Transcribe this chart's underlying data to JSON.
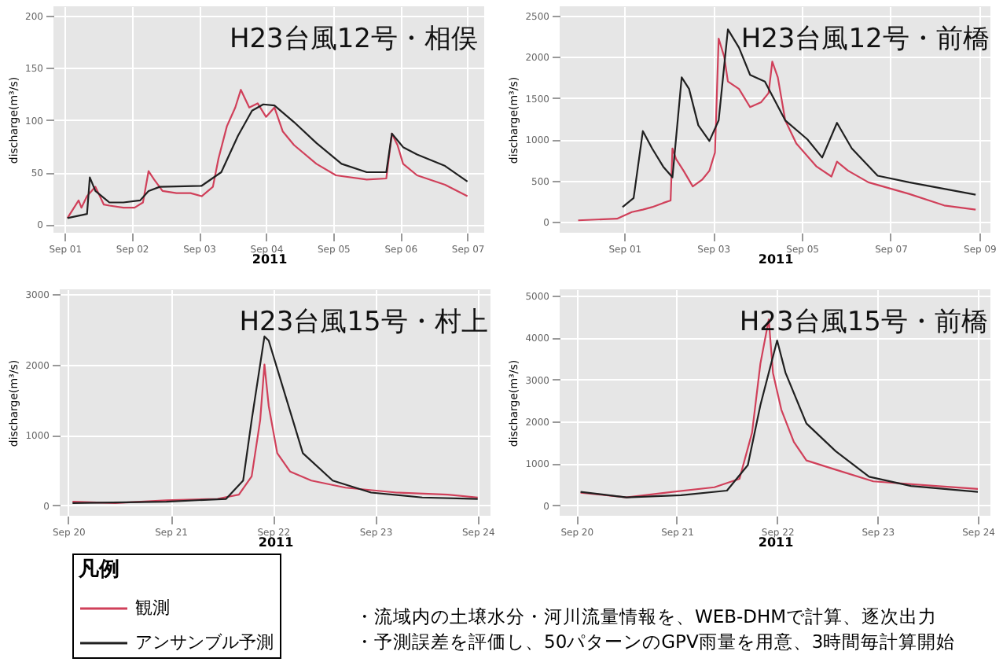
{
  "chart_data": [
    {
      "type": "line",
      "title": "H23台風12号・相俣",
      "xlabel": "2011",
      "ylabel": "discharge(m³/s)",
      "grid": true,
      "xlim": [
        "2011-08-31T20:00",
        "2011-09-07T06:00"
      ],
      "xticks": [
        {
          "value": "2011-09-01",
          "label": "Sep 01"
        },
        {
          "value": "2011-09-02",
          "label": "Sep 02"
        },
        {
          "value": "2011-09-03",
          "label": "Sep 03"
        },
        {
          "value": "2011-09-04",
          "label": "Sep 04"
        },
        {
          "value": "2011-09-05",
          "label": "Sep 05"
        },
        {
          "value": "2011-09-06",
          "label": "Sep 06"
        },
        {
          "value": "2011-09-07",
          "label": "Sep 07"
        }
      ],
      "ylim": [
        -8,
        209
      ],
      "yticks": [
        0,
        50,
        100,
        150,
        200
      ],
      "series": [
        {
          "color": "#d0405a",
          "x": [
            "2011-09-01T01:00",
            "2011-09-01T05:00",
            "2011-09-01T06:00",
            "2011-09-01T08:00",
            "2011-09-01T11:00",
            "2011-09-01T14:00",
            "2011-09-01T16:00",
            "2011-09-01T21:00",
            "2011-09-02T01:00",
            "2011-09-02T04:00",
            "2011-09-02T06:00",
            "2011-09-02T08:00",
            "2011-09-02T11:00",
            "2011-09-02T16:00",
            "2011-09-02T21:00",
            "2011-09-03T01:00",
            "2011-09-03T05:00",
            "2011-09-03T07:00",
            "2011-09-03T10:00",
            "2011-09-03T13:00",
            "2011-09-03T15:00",
            "2011-09-03T18:00",
            "2011-09-03T21:00",
            "2011-09-04T00:00",
            "2011-09-04T03:00",
            "2011-09-04T06:00",
            "2011-09-04T10:00",
            "2011-09-04T18:00",
            "2011-09-05T01:00",
            "2011-09-05T12:00",
            "2011-09-05T19:00",
            "2011-09-05T21:00",
            "2011-09-05T23:00",
            "2011-09-06T01:00",
            "2011-09-06T06:00",
            "2011-09-06T16:00",
            "2011-09-07T00:00"
          ],
          "values": [
            6,
            23,
            16,
            27,
            36,
            19,
            18,
            16,
            16,
            21,
            51,
            43,
            32,
            30,
            30,
            27,
            36,
            63,
            94,
            112,
            129,
            112,
            116,
            103,
            112,
            89,
            76,
            58,
            47,
            43,
            44,
            87,
            76,
            58,
            47,
            38,
            27
          ]
        },
        {
          "color": "#202020",
          "x": [
            "2011-09-01T01:00",
            "2011-09-01T08:00",
            "2011-09-01T09:00",
            "2011-09-01T11:00",
            "2011-09-01T16:00",
            "2011-09-01T21:00",
            "2011-09-02T03:00",
            "2011-09-02T06:00",
            "2011-09-02T10:00",
            "2011-09-03T01:00",
            "2011-09-03T08:00",
            "2011-09-03T14:00",
            "2011-09-03T19:00",
            "2011-09-03T23:00",
            "2011-09-04T03:00",
            "2011-09-04T10:00",
            "2011-09-04T18:00",
            "2011-09-05T03:00",
            "2011-09-05T12:00",
            "2011-09-05T19:00",
            "2011-09-05T21:00",
            "2011-09-06T01:00",
            "2011-09-06T06:00",
            "2011-09-06T16:00",
            "2011-09-07T00:00"
          ],
          "values": [
            6,
            10,
            45,
            32,
            21,
            21,
            23,
            32,
            36,
            37,
            50,
            85,
            109,
            115,
            114,
            98,
            78,
            58,
            50,
            50,
            87,
            74,
            67,
            56,
            41
          ]
        }
      ]
    },
    {
      "type": "line",
      "title": "H23台風12号・前橋",
      "xlabel": "2011",
      "ylabel": "discharge(m³/s)",
      "grid": true,
      "xlim": [
        "2011-08-30T13:00",
        "2011-09-09T06:00"
      ],
      "xticks": [
        {
          "value": "2011-09-01",
          "label": "Sep 01"
        },
        {
          "value": "2011-09-03",
          "label": "Sep 03"
        },
        {
          "value": "2011-09-05",
          "label": "Sep 05"
        },
        {
          "value": "2011-09-07",
          "label": "Sep 07"
        },
        {
          "value": "2011-09-09",
          "label": "Sep 09"
        }
      ],
      "ylim": [
        -130,
        2610
      ],
      "yticks": [
        0,
        500,
        1000,
        1500,
        2000,
        2500
      ],
      "series": [
        {
          "color": "#d0405a",
          "x": [
            "2011-08-30T23:00",
            "2011-08-31T20:00",
            "2011-09-01T04:00",
            "2011-09-01T10:00",
            "2011-09-01T15:00",
            "2011-09-01T21:00",
            "2011-09-02T01:00",
            "2011-09-02T02:00",
            "2011-09-02T04:00",
            "2011-09-02T08:00",
            "2011-09-02T13:00",
            "2011-09-02T18:00",
            "2011-09-02T22:00",
            "2011-09-03T01:00",
            "2011-09-03T03:00",
            "2011-09-03T06:00",
            "2011-09-03T08:00",
            "2011-09-03T14:00",
            "2011-09-03T20:00",
            "2011-09-04T02:00",
            "2011-09-04T06:00",
            "2011-09-04T08:00",
            "2011-09-04T11:00",
            "2011-09-04T15:00",
            "2011-09-04T21:00",
            "2011-09-05T08:00",
            "2011-09-05T16:00",
            "2011-09-05T19:00",
            "2011-09-06T01:00",
            "2011-09-06T12:00",
            "2011-09-07T10:00",
            "2011-09-08T05:00",
            "2011-09-08T22:00"
          ],
          "values": [
            20,
            40,
            120,
            150,
            180,
            230,
            260,
            890,
            760,
            620,
            430,
            510,
            620,
            840,
            2220,
            2000,
            1700,
            1610,
            1390,
            1450,
            1560,
            1940,
            1750,
            1230,
            950,
            670,
            550,
            730,
            620,
            480,
            340,
            200,
            150
          ]
        },
        {
          "color": "#202020",
          "x": [
            "2011-08-31T23:00",
            "2011-09-01T05:00",
            "2011-09-01T10:00",
            "2011-09-01T15:00",
            "2011-09-01T21:00",
            "2011-09-02T02:00",
            "2011-09-02T07:00",
            "2011-09-02T11:00",
            "2011-09-02T16:00",
            "2011-09-02T22:00",
            "2011-09-03T03:00",
            "2011-09-03T08:00",
            "2011-09-03T14:00",
            "2011-09-03T20:00",
            "2011-09-04T04:00",
            "2011-09-04T15:00",
            "2011-09-05T03:00",
            "2011-09-05T11:00",
            "2011-09-05T19:00",
            "2011-09-06T03:00",
            "2011-09-06T17:00",
            "2011-09-07T10:00",
            "2011-09-08T22:00"
          ],
          "values": [
            180,
            290,
            1100,
            890,
            670,
            540,
            1750,
            1610,
            1170,
            980,
            1230,
            2330,
            2110,
            1780,
            1700,
            1230,
            1000,
            780,
            1200,
            890,
            560,
            480,
            330
          ]
        }
      ]
    },
    {
      "type": "line",
      "title": "H23台風15号・村上",
      "xlabel": "2011",
      "ylabel": "discharge(m³/s)",
      "grid": true,
      "legend": "bottom",
      "legend_title": "凡例",
      "xlim": [
        "2011-09-19T22:00",
        "2011-09-24T03:00"
      ],
      "xticks": [
        {
          "value": "2011-09-20",
          "label": "Sep 20"
        },
        {
          "value": "2011-09-21",
          "label": "Sep 21"
        },
        {
          "value": "2011-09-22",
          "label": "Sep 22"
        },
        {
          "value": "2011-09-23",
          "label": "Sep 23"
        },
        {
          "value": "2011-09-24",
          "label": "Sep 24"
        }
      ],
      "ylim": [
        -150,
        3070
      ],
      "yticks": [
        0,
        1000,
        2000,
        3000
      ],
      "series": [
        {
          "name": "観測",
          "color": "#d0405a",
          "x": [
            "2011-09-20T01:00",
            "2011-09-20T11:00",
            "2011-09-20T23:00",
            "2011-09-21T11:00",
            "2011-09-21T16:00",
            "2011-09-21T19:00",
            "2011-09-21T21:00",
            "2011-09-21T22:00",
            "2011-09-21T23:00",
            "2011-09-22T01:00",
            "2011-09-22T04:00",
            "2011-09-22T09:00",
            "2011-09-22T17:00",
            "2011-09-23T05:00",
            "2011-09-23T17:00",
            "2011-09-24T00:00"
          ],
          "values": [
            50,
            30,
            70,
            90,
            150,
            410,
            1210,
            2000,
            1410,
            740,
            480,
            350,
            250,
            180,
            150,
            110
          ]
        },
        {
          "name": "アンサンブル予測",
          "color": "#202020",
          "x": [
            "2011-09-20T01:00",
            "2011-09-20T23:00",
            "2011-09-21T13:00",
            "2011-09-21T17:00",
            "2011-09-21T19:00",
            "2011-09-21T22:00",
            "2011-09-21T23:00",
            "2011-09-22T03:00",
            "2011-09-22T07:00",
            "2011-09-22T14:00",
            "2011-09-22T23:00",
            "2011-09-23T11:00",
            "2011-09-24T00:00"
          ],
          "values": [
            30,
            50,
            90,
            350,
            1210,
            2400,
            2340,
            1540,
            740,
            350,
            180,
            110,
            90
          ]
        }
      ]
    },
    {
      "type": "line",
      "title": "H23台風15号・前橋",
      "xlabel": "2011",
      "ylabel": "discharge(m³/s)",
      "grid": true,
      "annotations": [
        "・流域内の土壌水分・河川流量情報を、WEB-DHMで計算、逐次出力",
        "・予測誤差を評価し、50パターンのGPV雨量を用意、3時間毎計算開始"
      ],
      "xlim": [
        "2011-09-19T20:00",
        "2011-09-24T03:00"
      ],
      "xticks": [
        {
          "value": "2011-09-20",
          "label": "Sep 20"
        },
        {
          "value": "2011-09-21",
          "label": "Sep 21"
        },
        {
          "value": "2011-09-22",
          "label": "Sep 22"
        },
        {
          "value": "2011-09-23",
          "label": "Sep 23"
        },
        {
          "value": "2011-09-24",
          "label": "Sep 24"
        }
      ],
      "ylim": [
        -250,
        5150
      ],
      "yticks": [
        0,
        1000,
        2000,
        3000,
        4000,
        5000
      ],
      "series": [
        {
          "color": "#d0405a",
          "x": [
            "2011-09-20T01:00",
            "2011-09-20T12:00",
            "2011-09-20T23:00",
            "2011-09-21T09:00",
            "2011-09-21T15:00",
            "2011-09-21T18:00",
            "2011-09-21T20:00",
            "2011-09-21T22:00",
            "2011-09-21T23:00",
            "2011-09-22T01:00",
            "2011-09-22T04:00",
            "2011-09-22T07:00",
            "2011-09-22T14:00",
            "2011-09-22T23:00",
            "2011-09-23T14:00",
            "2011-09-24T00:00"
          ],
          "values": [
            300,
            190,
            320,
            430,
            630,
            1730,
            3380,
            4430,
            3160,
            2280,
            1510,
            1070,
            850,
            570,
            460,
            390
          ]
        },
        {
          "color": "#202020",
          "x": [
            "2011-09-20T01:00",
            "2011-09-20T12:00",
            "2011-09-21T01:00",
            "2011-09-21T12:00",
            "2011-09-21T17:00",
            "2011-09-21T20:00",
            "2011-09-22T00:00",
            "2011-09-22T02:00",
            "2011-09-22T07:00",
            "2011-09-22T14:00",
            "2011-09-22T22:00",
            "2011-09-23T08:00",
            "2011-09-24T00:00"
          ],
          "values": [
            320,
            190,
            240,
            350,
            960,
            2390,
            3930,
            3160,
            1950,
            1290,
            680,
            460,
            320
          ]
        }
      ]
    }
  ]
}
